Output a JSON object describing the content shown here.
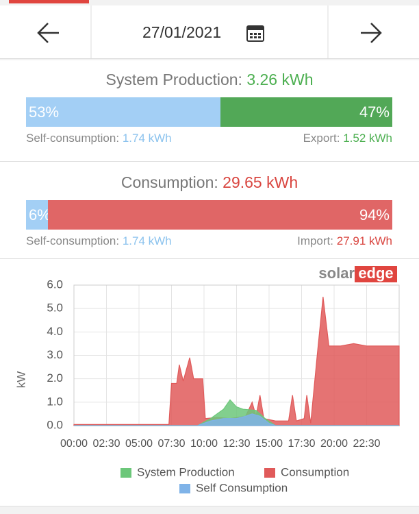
{
  "header": {
    "date": "27/01/2021"
  },
  "production": {
    "title": "System Production:",
    "total": "3.26 kWh",
    "self_share": {
      "value": 53,
      "label": "53%"
    },
    "export_share": {
      "value": 47,
      "label": "47%"
    },
    "self_label": "Self-consumption:",
    "self_value": "1.74 kWh",
    "export_label": "Export:",
    "export_value": "1.52 kWh"
  },
  "consumption": {
    "title": "Consumption:",
    "total": "29.65 kWh",
    "self_share": {
      "value": 6,
      "label": "6%"
    },
    "import_share": {
      "value": 94,
      "label": "94%"
    },
    "self_label": "Self-consumption:",
    "self_value": "1.74 kWh",
    "import_label": "Import:",
    "import_value": "27.91 kWh"
  },
  "brand": {
    "part1": "solar",
    "part2": "edge"
  },
  "chart_data": {
    "type": "area",
    "y_label": "kW",
    "xlim": [
      0,
      25
    ],
    "xticks": [
      {
        "value": 0,
        "label": "00:00"
      },
      {
        "value": 2.5,
        "label": "02:30"
      },
      {
        "value": 5,
        "label": "05:00"
      },
      {
        "value": 7.5,
        "label": "07:30"
      },
      {
        "value": 10,
        "label": "10:00"
      },
      {
        "value": 12.5,
        "label": "12:30"
      },
      {
        "value": 15,
        "label": "15:00"
      },
      {
        "value": 17.5,
        "label": "17:30"
      },
      {
        "value": 20,
        "label": "20:00"
      },
      {
        "value": 22.5,
        "label": "22:30"
      }
    ],
    "ylim": [
      0,
      6
    ],
    "yticks": [
      {
        "value": 0,
        "label": "0.0"
      },
      {
        "value": 1,
        "label": "1.0"
      },
      {
        "value": 2,
        "label": "2.0"
      },
      {
        "value": 3,
        "label": "3.0"
      },
      {
        "value": 4,
        "label": "4.0"
      },
      {
        "value": 5,
        "label": "5.0"
      },
      {
        "value": 6,
        "label": "6.0"
      }
    ],
    "grid": true,
    "series": [
      {
        "name": "Consumption",
        "color": "#e05a5a",
        "x": [
          0,
          7.3,
          7.5,
          7.9,
          8.1,
          8.4,
          8.9,
          9.2,
          9.9,
          10.1,
          11,
          12,
          13.2,
          13.7,
          14.0,
          14.3,
          14.6,
          15.5,
          16.5,
          16.8,
          17.1,
          17.7,
          17.9,
          18.2,
          18.7,
          19.15,
          19.6,
          20.5,
          21.5,
          22.5,
          23.5,
          25
        ],
        "values": [
          0.05,
          0.05,
          1.8,
          1.8,
          2.6,
          1.9,
          2.9,
          2.0,
          2.0,
          0.3,
          0.35,
          0.3,
          0.4,
          1.0,
          0.4,
          1.3,
          0.3,
          0.2,
          0.2,
          1.3,
          0.2,
          0.3,
          1.3,
          0.1,
          3.0,
          5.5,
          3.4,
          3.4,
          3.5,
          3.4,
          3.4,
          3.4
        ]
      },
      {
        "name": "System Production",
        "color": "#6cc77a",
        "x": [
          0,
          9.5,
          10.5,
          11.5,
          12.0,
          12.5,
          13,
          14,
          14.7,
          15.5,
          25
        ],
        "values": [
          0,
          0,
          0.3,
          0.7,
          1.1,
          0.8,
          0.7,
          0.65,
          0.3,
          0,
          0
        ]
      },
      {
        "name": "Self Consumption",
        "color": "#7fb3e8",
        "x": [
          0,
          9.5,
          10.5,
          11.5,
          12.5,
          13.2,
          13.7,
          14.3,
          15,
          15.5,
          25
        ],
        "values": [
          0,
          0,
          0.2,
          0.3,
          0.3,
          0.4,
          0.5,
          0.4,
          0.1,
          0,
          0
        ]
      }
    ],
    "legend_order": [
      1,
      0,
      2
    ]
  }
}
